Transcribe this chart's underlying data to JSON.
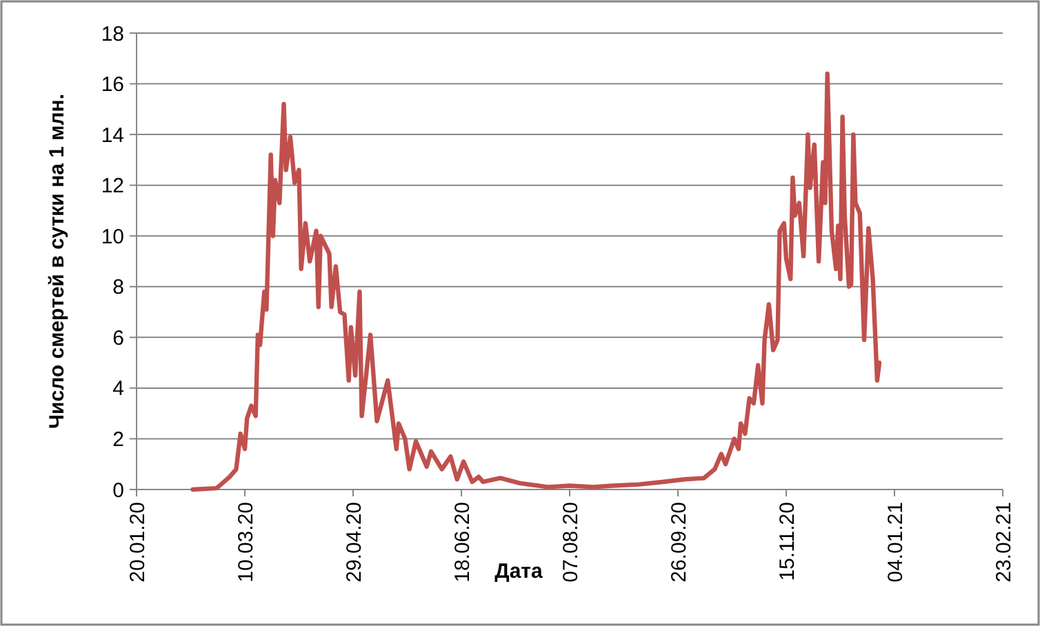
{
  "chart_data": {
    "type": "line",
    "xlabel": "Дата",
    "ylabel": "Число смертей в сутки на 1 млн.",
    "xlim": [
      "2020-01-20",
      "2021-02-23"
    ],
    "xticks": [
      {
        "value": "2020-01-20",
        "label": "20.01.20"
      },
      {
        "value": "2020-03-10",
        "label": "10.03.20"
      },
      {
        "value": "2020-04-29",
        "label": "29.04.20"
      },
      {
        "value": "2020-06-18",
        "label": "18.06.20"
      },
      {
        "value": "2020-08-07",
        "label": "07.08.20"
      },
      {
        "value": "2020-09-26",
        "label": "26.09.20"
      },
      {
        "value": "2020-11-15",
        "label": "15.11.20"
      },
      {
        "value": "2021-01-04",
        "label": "04.01.21"
      },
      {
        "value": "2021-02-23",
        "label": "23.02.21"
      }
    ],
    "ylim": [
      0,
      18
    ],
    "yticks": [
      0,
      2,
      4,
      6,
      8,
      10,
      12,
      14,
      16,
      18
    ],
    "grid": "y",
    "marker": "none",
    "line_style": "solid",
    "series": [
      {
        "color": "#c0504d",
        "x": [
          "2020-02-15",
          "2020-02-26",
          "2020-03-03",
          "2020-03-06",
          "2020-03-08",
          "2020-03-10",
          "2020-03-11",
          "2020-03-13",
          "2020-03-15",
          "2020-03-16",
          "2020-03-17",
          "2020-03-19",
          "2020-03-20",
          "2020-03-22",
          "2020-03-23",
          "2020-03-24",
          "2020-03-26",
          "2020-03-28",
          "2020-03-29",
          "2020-03-31",
          "2020-04-02",
          "2020-04-04",
          "2020-04-05",
          "2020-04-07",
          "2020-04-09",
          "2020-04-12",
          "2020-04-13",
          "2020-04-14",
          "2020-04-18",
          "2020-04-19",
          "2020-04-21",
          "2020-04-23",
          "2020-04-25",
          "2020-04-27",
          "2020-04-28",
          "2020-04-30",
          "2020-05-02",
          "2020-05-03",
          "2020-05-07",
          "2020-05-10",
          "2020-05-15",
          "2020-05-19",
          "2020-05-20",
          "2020-05-23",
          "2020-05-25",
          "2020-05-28",
          "2020-06-02",
          "2020-06-04",
          "2020-06-09",
          "2020-06-13",
          "2020-06-16",
          "2020-06-19",
          "2020-06-23",
          "2020-06-26",
          "2020-06-28",
          "2020-07-06",
          "2020-07-15",
          "2020-07-28",
          "2020-08-07",
          "2020-08-18",
          "2020-08-27",
          "2020-09-08",
          "2020-09-19",
          "2020-09-29",
          "2020-10-08",
          "2020-10-13",
          "2020-10-16",
          "2020-10-18",
          "2020-10-22",
          "2020-10-24",
          "2020-10-25",
          "2020-10-27",
          "2020-10-29",
          "2020-10-31",
          "2020-11-02",
          "2020-11-04",
          "2020-11-05",
          "2020-11-07",
          "2020-11-09",
          "2020-11-11",
          "2020-11-12",
          "2020-11-14",
          "2020-11-15",
          "2020-11-17",
          "2020-11-18",
          "2020-11-19",
          "2020-11-21",
          "2020-11-23",
          "2020-11-25",
          "2020-11-26",
          "2020-11-28",
          "2020-11-30",
          "2020-12-02",
          "2020-12-03",
          "2020-12-04",
          "2020-12-06",
          "2020-12-08",
          "2020-12-09",
          "2020-12-10",
          "2020-12-11",
          "2020-12-12",
          "2020-12-14",
          "2020-12-15",
          "2020-12-16",
          "2020-12-17",
          "2020-12-19",
          "2020-12-21",
          "2020-12-23",
          "2020-12-25",
          "2020-12-27",
          "2020-12-28"
        ],
        "values": [
          0,
          0.05,
          0.5,
          0.8,
          2.2,
          1.6,
          2.8,
          3.3,
          2.9,
          6.1,
          5.7,
          7.8,
          7.1,
          13.2,
          10.0,
          12.2,
          11.3,
          15.2,
          12.6,
          13.9,
          12.1,
          12.6,
          8.7,
          10.5,
          9.0,
          10.2,
          7.2,
          10.0,
          9.3,
          7.2,
          8.8,
          7.0,
          6.9,
          4.3,
          6.4,
          4.5,
          7.8,
          2.9,
          6.1,
          2.7,
          4.3,
          1.6,
          2.6,
          2.0,
          0.8,
          1.9,
          0.9,
          1.5,
          0.8,
          1.3,
          0.4,
          1.1,
          0.3,
          0.5,
          0.3,
          0.45,
          0.25,
          0.1,
          0.15,
          0.1,
          0.15,
          0.2,
          0.3,
          0.4,
          0.45,
          0.8,
          1.4,
          1.0,
          2.0,
          1.6,
          2.6,
          2.2,
          3.6,
          3.4,
          4.9,
          3.4,
          5.9,
          7.3,
          5.5,
          5.9,
          10.2,
          10.5,
          9.1,
          8.3,
          12.3,
          10.8,
          11.3,
          9.2,
          14.0,
          11.9,
          13.6,
          9.0,
          12.9,
          11.3,
          16.4,
          10.2,
          8.7,
          10.4,
          8.3,
          14.7,
          10.8,
          8.0,
          8.1,
          14.0,
          11.3,
          10.9,
          5.9,
          10.3,
          8.3,
          4.3,
          5.0
        ]
      }
    ]
  }
}
